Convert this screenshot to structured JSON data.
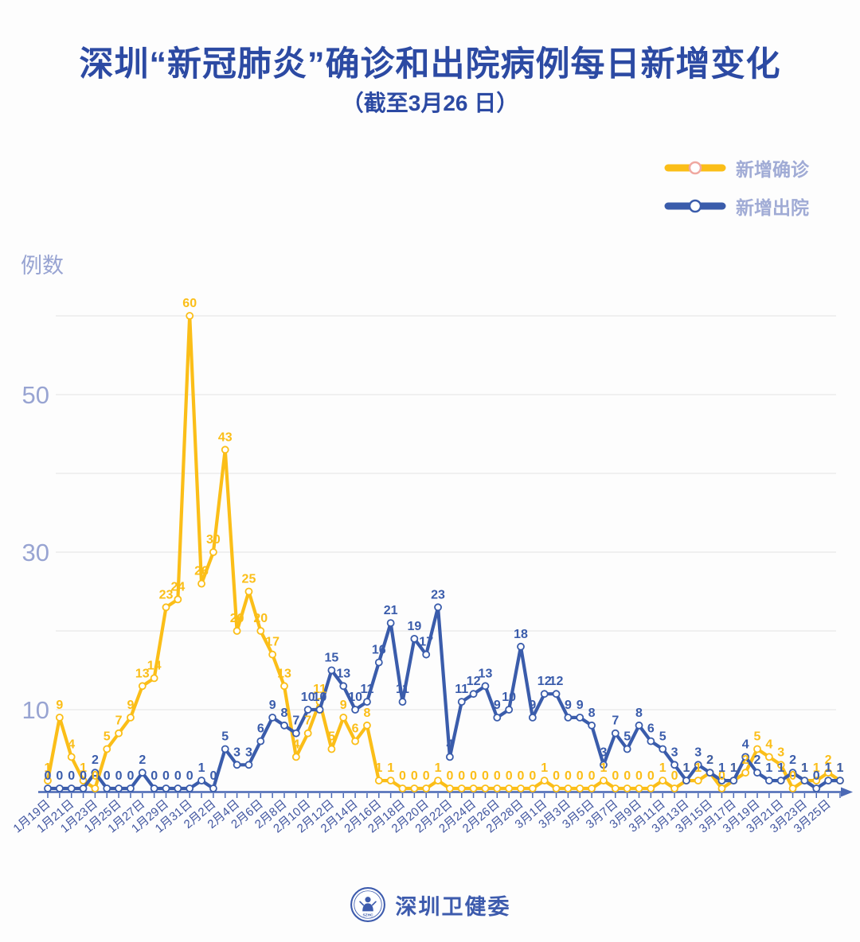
{
  "title": "深圳“新冠肺炎”确诊和出院病例每日新增变化",
  "subtitle": "（截至3月26 日）",
  "y_axis_title": "例数",
  "legend": {
    "items": [
      {
        "label": "新增确诊",
        "color": "#fbbe18",
        "ring": "#f0a8a0"
      },
      {
        "label": "新增出院",
        "color": "#3a5cab",
        "ring": "#3a5cab"
      }
    ]
  },
  "colors": {
    "title": "#2c4aa3",
    "axis_label": "#98a4d2",
    "date_label": "#4156a0",
    "axis_line": "#4b69b5",
    "gridline": "#e8e8e8",
    "confirmed": "#fbbe18",
    "discharged": "#3a5cab"
  },
  "footer": {
    "name": "深圳卫健委",
    "badge_text": "SZHC"
  },
  "chart_data": {
    "type": "line",
    "first_day": "1月19日",
    "last_day": "3月26日",
    "n_points": 68,
    "x_tick_labels": [
      "1月19日",
      "1月21日",
      "1月23日",
      "1月25日",
      "1月27日",
      "1月29日",
      "1月31日",
      "2月2日",
      "2月4日",
      "2月6日",
      "2月8日",
      "2月10日",
      "2月12日",
      "2月14日",
      "2月16日",
      "2月18日",
      "2月20日",
      "2月22日",
      "2月24日",
      "2月26日",
      "2月28日",
      "3月1日",
      "3月3日",
      "3月5日",
      "3月7日",
      "3月9日",
      "3月11日",
      "3月13日",
      "3月15日",
      "3月17日",
      "3月19日",
      "3月21日",
      "3月23日",
      "3月25日"
    ],
    "x_tick_step": 2,
    "ylabel": "例数",
    "ylim": [
      0,
      60
    ],
    "grid_step": 10,
    "y_ticks_labeled": [
      10,
      30,
      50
    ],
    "legend_position": "top-right",
    "series": [
      {
        "name": "新增确诊",
        "color": "#fbbe18",
        "values": [
          1,
          9,
          4,
          1,
          0,
          5,
          7,
          9,
          13,
          14,
          23,
          24,
          60,
          26,
          30,
          43,
          20,
          25,
          20,
          17,
          13,
          4,
          7,
          11,
          5,
          9,
          6,
          8,
          1,
          1,
          0,
          0,
          0,
          1,
          0,
          0,
          0,
          0,
          0,
          0,
          0,
          0,
          1,
          0,
          0,
          0,
          0,
          1,
          0,
          0,
          0,
          0,
          1,
          0,
          1,
          1,
          2,
          0,
          1,
          2,
          5,
          4,
          3,
          0,
          1,
          1,
          2,
          1
        ]
      },
      {
        "name": "新增出院",
        "color": "#3a5cab",
        "values": [
          0,
          0,
          0,
          0,
          2,
          0,
          0,
          0,
          2,
          0,
          0,
          0,
          0,
          1,
          0,
          5,
          3,
          3,
          6,
          9,
          8,
          7,
          10,
          10,
          15,
          13,
          10,
          11,
          16,
          21,
          11,
          19,
          17,
          23,
          4,
          11,
          12,
          13,
          9,
          10,
          18,
          9,
          12,
          12,
          9,
          9,
          8,
          3,
          7,
          5,
          8,
          6,
          5,
          3,
          1,
          3,
          2,
          1,
          1,
          4,
          2,
          1,
          1,
          2,
          1,
          0,
          1,
          1
        ]
      }
    ]
  }
}
